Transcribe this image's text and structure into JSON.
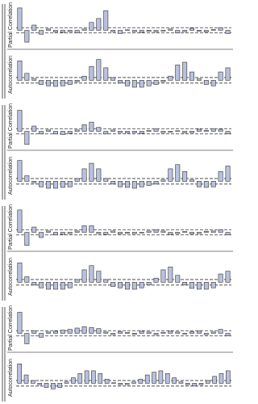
{
  "chart_data": [
    {
      "type": "bar",
      "ylabel": "Partial Correlation",
      "ylim": [
        -0.6,
        1
      ],
      "bounds": [
        -0.1,
        0.1
      ],
      "values": [
        0.85,
        -0.45,
        0.2,
        -0.15,
        0.05,
        -0.06,
        -0.08,
        -0.05,
        -0.1,
        0.05,
        0.3,
        0.45,
        0.75,
        -0.05,
        -0.12,
        0.02,
        -0.05,
        -0.08,
        -0.04,
        -0.06,
        -0.03,
        0.05,
        -0.1,
        -0.05,
        0.08,
        -0.04,
        -0.06,
        0.03,
        0.1,
        -0.12
      ]
    },
    {
      "type": "bar",
      "ylabel": "Autocorrelation",
      "ylim": [
        -0.6,
        1
      ],
      "bounds": [
        -0.1,
        0.1
      ],
      "values": [
        0.7,
        0.25,
        0.05,
        -0.15,
        -0.2,
        -0.22,
        -0.2,
        -0.15,
        -0.05,
        0.15,
        0.5,
        0.75,
        0.45,
        0.1,
        -0.1,
        -0.2,
        -0.25,
        -0.25,
        -0.2,
        -0.15,
        -0.05,
        0.15,
        0.55,
        0.65,
        0.3,
        0.05,
        -0.15,
        -0.2,
        0.3,
        0.45
      ]
    },
    {
      "type": "bar",
      "ylabel": "Partial Correlation",
      "ylim": [
        -0.6,
        1
      ],
      "bounds": [
        -0.1,
        0.1
      ],
      "values": [
        0.8,
        -0.5,
        0.2,
        -0.1,
        0.05,
        -0.1,
        -0.12,
        -0.08,
        0.05,
        0.25,
        0.35,
        0.15,
        -0.1,
        0.05,
        -0.05,
        -0.06,
        -0.05,
        -0.08,
        0.03,
        0.1,
        -0.05,
        -0.04,
        0.02,
        -0.06,
        -0.05,
        0.08,
        0.04,
        0.1,
        0.08,
        -0.1
      ]
    },
    {
      "type": "bar",
      "ylabel": "Autocorrelation",
      "ylim": [
        -0.6,
        1
      ],
      "bounds": [
        -0.1,
        0.1
      ],
      "values": [
        0.75,
        0.2,
        -0.05,
        -0.2,
        -0.25,
        -0.25,
        -0.22,
        -0.2,
        0.1,
        0.45,
        0.65,
        0.45,
        0.1,
        -0.1,
        -0.2,
        -0.22,
        -0.25,
        -0.2,
        -0.15,
        -0.1,
        0.05,
        0.45,
        0.6,
        0.35,
        0.05,
        -0.2,
        -0.22,
        -0.2,
        0.35,
        0.55
      ]
    },
    {
      "type": "bar",
      "ylabel": "Partial Correlation",
      "ylim": [
        -0.6,
        1
      ],
      "bounds": [
        -0.1,
        0.1
      ],
      "values": [
        0.85,
        -0.5,
        0.2,
        -0.2,
        0.05,
        -0.1,
        -0.08,
        -0.05,
        0.05,
        0.25,
        0.25,
        -0.05,
        -0.08,
        0.05,
        -0.06,
        -0.04,
        -0.05,
        -0.03,
        0.05,
        0.1,
        0.05,
        -0.08,
        -0.05,
        0.03,
        -0.06,
        -0.05,
        0.04,
        0.05,
        0.1,
        -0.1
      ]
    },
    {
      "type": "bar",
      "ylabel": "Autocorrelation",
      "ylim": [
        -0.6,
        1
      ],
      "bounds": [
        -0.1,
        0.1
      ],
      "values": [
        0.7,
        0.2,
        -0.1,
        -0.2,
        -0.25,
        -0.25,
        -0.25,
        -0.2,
        0.1,
        0.45,
        0.6,
        0.4,
        0.1,
        -0.15,
        -0.2,
        -0.25,
        -0.25,
        -0.2,
        -0.1,
        0.15,
        0.45,
        0.55,
        0.25,
        -0.1,
        -0.22,
        -0.25,
        -0.25,
        -0.2,
        0.3,
        0.4
      ]
    },
    {
      "type": "bar",
      "ylabel": "Partial Correlation",
      "ylim": [
        -0.6,
        1
      ],
      "bounds": [
        -0.1,
        0.1
      ],
      "values": [
        0.8,
        -0.4,
        0.1,
        -0.15,
        0.05,
        0.08,
        0.12,
        0.15,
        0.2,
        0.25,
        0.22,
        0.18,
        0.05,
        -0.05,
        0.06,
        0.03,
        -0.04,
        0.08,
        0.05,
        -0.05,
        0.04,
        0.08,
        0.05,
        -0.03,
        0.06,
        0.1,
        -0.05,
        0.05,
        0.15,
        -0.1
      ]
    },
    {
      "type": "bar",
      "ylabel": "Autocorrelation",
      "ylim": [
        -0.6,
        1
      ],
      "bounds": [
        -0.1,
        0.1
      ],
      "values": [
        0.7,
        0.3,
        0.1,
        -0.05,
        -0.15,
        -0.2,
        -0.15,
        0.05,
        0.2,
        0.35,
        0.45,
        0.45,
        0.35,
        0.15,
        0.02,
        -0.05,
        -0.05,
        0.05,
        0.15,
        0.3,
        0.4,
        0.45,
        0.35,
        0.2,
        0.05,
        -0.05,
        -0.1,
        -0.05,
        0.1,
        0.25,
        0.35,
        0.45
      ]
    }
  ]
}
